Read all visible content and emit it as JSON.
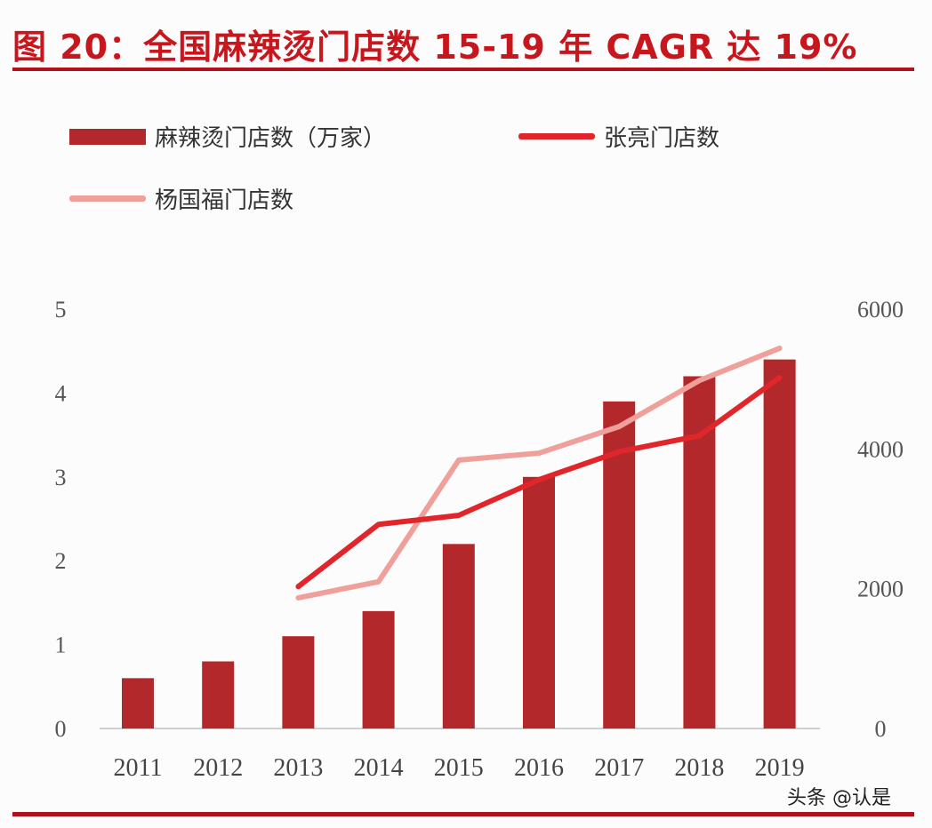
{
  "title": "图 20：全国麻辣烫门店数 15-19 年 CAGR 达 19%",
  "watermark": "头条 @认是",
  "colors": {
    "bar": "#b3282a",
    "zhangliang": "#e0262a",
    "yangguofu": "#f0a09a",
    "title": "#c8161d"
  },
  "chart_data": {
    "type": "bar+line",
    "categories": [
      "2011",
      "2012",
      "2013",
      "2014",
      "2015",
      "2016",
      "2017",
      "2018",
      "2019"
    ],
    "y_left": {
      "range": [
        0,
        5
      ],
      "ticks": [
        "0",
        "1",
        "2",
        "3",
        "4",
        "5"
      ]
    },
    "y_right": {
      "range": [
        0,
        6000
      ],
      "ticks": [
        "0",
        "2000",
        "4000",
        "6000"
      ]
    },
    "legend_placement": "top",
    "grid": false,
    "series": [
      {
        "name": "麻辣烫门店数（万家）",
        "type": "bar",
        "axis": "left",
        "values": [
          0.6,
          0.8,
          1.1,
          1.4,
          2.2,
          3.0,
          3.9,
          4.2,
          4.4
        ]
      },
      {
        "name": "张亮门店数",
        "type": "line",
        "axis": "right",
        "values": [
          null,
          null,
          2030,
          2920,
          3050,
          3560,
          3960,
          4190,
          5020
        ]
      },
      {
        "name": "杨国福门店数",
        "type": "line",
        "axis": "right",
        "values": [
          null,
          null,
          1870,
          2100,
          3840,
          3940,
          4320,
          4980,
          5440
        ]
      }
    ]
  }
}
